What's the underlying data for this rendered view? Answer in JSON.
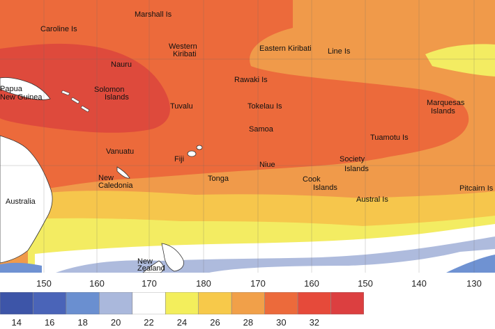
{
  "map": {
    "longitude_labels": [
      "150",
      "160",
      "170",
      "180",
      "170",
      "160",
      "150",
      "140",
      "130"
    ],
    "places": [
      {
        "id": "marshall-is",
        "text": "Marshall Is"
      },
      {
        "id": "caroline-is",
        "text": "Caroline Is"
      },
      {
        "id": "western-kiribati-1",
        "text": "Western"
      },
      {
        "id": "western-kiribati-2",
        "text": "Kiribati"
      },
      {
        "id": "eastern-kiribati",
        "text": "Eastern Kiribati"
      },
      {
        "id": "line-is",
        "text": "Line Is"
      },
      {
        "id": "nauru",
        "text": "Nauru"
      },
      {
        "id": "papua-1",
        "text": "Papua"
      },
      {
        "id": "papua-2",
        "text": "New Guinea"
      },
      {
        "id": "solomon-1",
        "text": "Solomon"
      },
      {
        "id": "solomon-2",
        "text": "Islands"
      },
      {
        "id": "rawaki",
        "text": "Rawaki Is"
      },
      {
        "id": "tuvalu",
        "text": "Tuvalu"
      },
      {
        "id": "tokelau",
        "text": "Tokelau Is"
      },
      {
        "id": "marquesas-1",
        "text": "Marquesas"
      },
      {
        "id": "marquesas-2",
        "text": "Islands"
      },
      {
        "id": "samoa",
        "text": "Samoa"
      },
      {
        "id": "tuamotu",
        "text": "Tuamotu Is"
      },
      {
        "id": "vanuatu",
        "text": "Vanuatu"
      },
      {
        "id": "fiji",
        "text": "Fiji"
      },
      {
        "id": "niue",
        "text": "Niue"
      },
      {
        "id": "society-1",
        "text": "Society"
      },
      {
        "id": "society-2",
        "text": "Islands"
      },
      {
        "id": "new-caledonia-1",
        "text": "New"
      },
      {
        "id": "new-caledonia-2",
        "text": "Caledonia"
      },
      {
        "id": "tonga",
        "text": "Tonga"
      },
      {
        "id": "cook-1",
        "text": "Cook"
      },
      {
        "id": "cook-2",
        "text": "Islands"
      },
      {
        "id": "pitcairn",
        "text": "Pitcairn Is"
      },
      {
        "id": "australia",
        "text": "Australia"
      },
      {
        "id": "austral",
        "text": "Austral Is"
      },
      {
        "id": "new-zealand-1",
        "text": "New"
      },
      {
        "id": "new-zealand-2",
        "text": "Zealand"
      }
    ]
  },
  "legend": {
    "labels": [
      "14",
      "16",
      "18",
      "20",
      "22",
      "24",
      "26",
      "28",
      "30",
      "32"
    ],
    "colors": [
      "#3d55a8",
      "#4a64b8",
      "#6a8fd0",
      "#aab8dc",
      "#ffffff",
      "#f3ee5c",
      "#f7c94a",
      "#f1a049",
      "#ec6a3b",
      "#e64a3a",
      "#dc3f40"
    ]
  },
  "colors": {
    "c_28": "#f09a4a",
    "c_30": "#ec6a3b",
    "c_32": "#de4a3c",
    "c_26": "#f6c64c",
    "c_24": "#f3ec62",
    "c_22": "#ffffff",
    "c_20": "#aebbdd",
    "c_18": "#6f92d2",
    "land": "#ffffff"
  }
}
